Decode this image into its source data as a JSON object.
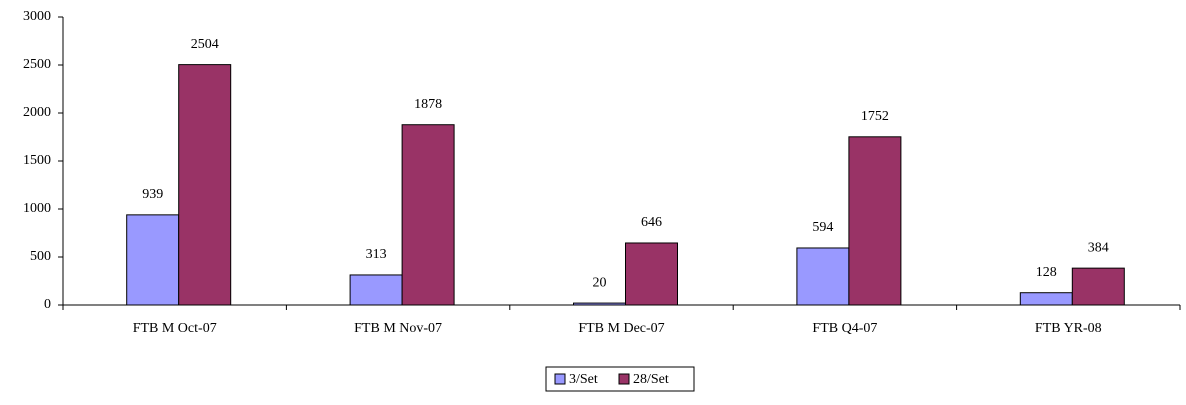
{
  "chart_data": {
    "type": "bar",
    "categories": [
      "FTB M Oct-07",
      "FTB M Nov-07",
      "FTB M Dec-07",
      "FTB Q4-07",
      "FTB YR-08"
    ],
    "series": [
      {
        "name": "3/Set",
        "color": "#9999ff",
        "values": [
          939,
          313,
          20,
          594,
          128
        ]
      },
      {
        "name": "28/Set",
        "color": "#993366",
        "values": [
          2504,
          1878,
          646,
          1752,
          384
        ]
      }
    ],
    "ylim": [
      0,
      3000
    ],
    "yticks": [
      0,
      500,
      1000,
      1500,
      2000,
      2500,
      3000
    ],
    "grid": false,
    "legend": "bottom"
  }
}
